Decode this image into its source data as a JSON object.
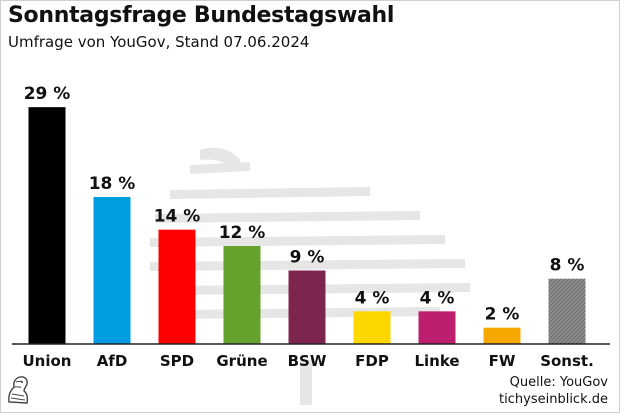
{
  "header": {
    "title": "Sonntagsfrage Bundestagswahl",
    "subtitle": "Umfrage von YouGov, Stand 07.06.2024"
  },
  "footer": {
    "source": "Quelle: YouGov",
    "site": "tichyseinblick.de"
  },
  "chart_data": {
    "type": "bar",
    "title": "Sonntagsfrage Bundestagswahl",
    "subtitle": "Umfrage von YouGov, Stand 07.06.2024",
    "xlabel": "",
    "ylabel": "",
    "unit": "%",
    "ylim": [
      0,
      30
    ],
    "grid": false,
    "categories": [
      "Union",
      "AfD",
      "SPD",
      "Grüne",
      "BSW",
      "FDP",
      "Linke",
      "FW",
      "Sonst."
    ],
    "values": [
      29,
      18,
      14,
      12,
      9,
      4,
      4,
      2,
      8
    ],
    "value_labels": [
      "29 %",
      "18 %",
      "14 %",
      "12 %",
      "9 %",
      "4 %",
      "4 %",
      "2 %",
      "8 %"
    ],
    "colors": [
      "#000000",
      "#009ee0",
      "#ff0000",
      "#64a12d",
      "#7d254f",
      "#ffd700",
      "#be1e6e",
      "#f7a800",
      "#808080"
    ],
    "patterns": [
      "solid",
      "solid",
      "solid",
      "solid",
      "solid",
      "solid",
      "solid",
      "solid",
      "hatched"
    ]
  }
}
